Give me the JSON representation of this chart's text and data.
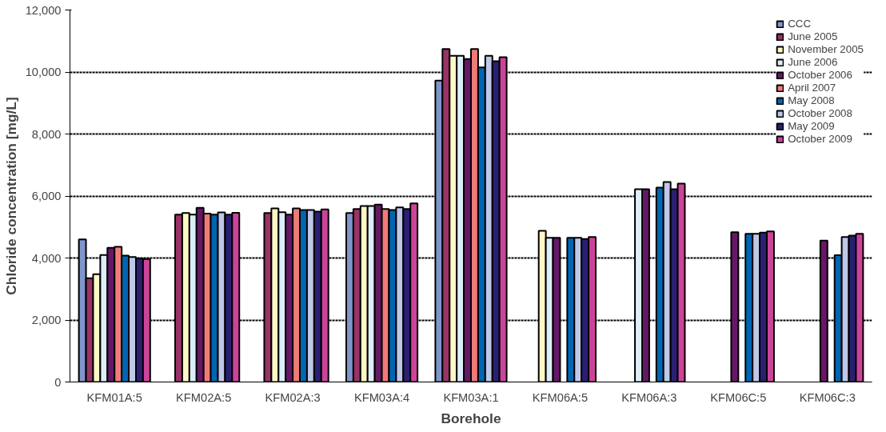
{
  "chart_data": {
    "type": "bar",
    "xlabel": "Borehole",
    "ylabel": "Chloride concentration [mg/L]",
    "categories": [
      "KFM01A:5",
      "KFM02A:5",
      "KFM02A:3",
      "KFM03A:4",
      "KFM03A:1",
      "KFM06A:5",
      "KFM06A:3",
      "KFM06C:5",
      "KFM06C:3"
    ],
    "series": [
      {
        "name": "CCC",
        "color": "#7f96cc",
        "values": [
          4600,
          null,
          null,
          5450,
          9720,
          null,
          null,
          null,
          null
        ]
      },
      {
        "name": "June 2005",
        "color": "#993366",
        "values": [
          3350,
          5400,
          5450,
          5580,
          10740,
          null,
          null,
          null,
          null
        ]
      },
      {
        "name": "November 2005",
        "color": "#fff8c6",
        "values": [
          3480,
          5450,
          5600,
          5680,
          10520,
          4880,
          null,
          null,
          null
        ]
      },
      {
        "name": "June 2006",
        "color": "#ddeef8",
        "values": [
          4100,
          5400,
          5480,
          5680,
          10520,
          4650,
          6220,
          null,
          null
        ]
      },
      {
        "name": "October 2006",
        "color": "#661866",
        "values": [
          4330,
          5620,
          5400,
          5720,
          10420,
          4650,
          6220,
          4830,
          4560
        ]
      },
      {
        "name": "April 2007",
        "color": "#f07b78",
        "values": [
          4360,
          5430,
          5600,
          5580,
          10740,
          null,
          null,
          null,
          null
        ]
      },
      {
        "name": "May 2008",
        "color": "#0066b3",
        "values": [
          4080,
          5400,
          5550,
          5550,
          10150,
          4650,
          6270,
          4780,
          4090
        ]
      },
      {
        "name": "October 2008",
        "color": "#c0c8e8",
        "values": [
          4030,
          5470,
          5550,
          5630,
          10520,
          4650,
          6450,
          4780,
          4680
        ]
      },
      {
        "name": "May 2009",
        "color": "#2b1f73",
        "values": [
          3980,
          5400,
          5500,
          5580,
          10350,
          4610,
          6220,
          4820,
          4720
        ]
      },
      {
        "name": "October 2009",
        "color": "#cc4499",
        "values": [
          3970,
          5460,
          5570,
          5760,
          10480,
          4680,
          6400,
          4860,
          4780
        ]
      }
    ],
    "ylim": [
      0,
      12000
    ],
    "yticks": [
      0,
      {
        "value": 2000,
        "label": "2,000"
      },
      {
        "value": 4000,
        "label": "4,000"
      },
      {
        "value": 6000,
        "label": "6,000"
      },
      {
        "value": 8000,
        "label": "8,000"
      },
      {
        "value": 10000,
        "label": "10,000"
      },
      {
        "value": 12000,
        "label": "12,000"
      }
    ],
    "grid": "y",
    "legend": "top right"
  }
}
